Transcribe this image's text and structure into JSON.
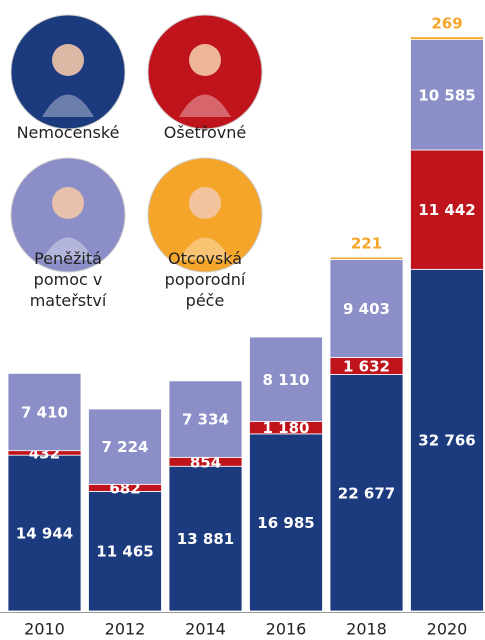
{
  "chart_data": {
    "type": "bar",
    "stacked": true,
    "categories": [
      "2010",
      "2012",
      "2014",
      "2016",
      "2018",
      "2020"
    ],
    "series": [
      {
        "name": "Nemocenské",
        "color": "#1c3a7e",
        "values": [
          14944,
          11465,
          13881,
          16985,
          22677,
          32766
        ],
        "value_labels": [
          "14 944",
          "11 465",
          "13 881",
          "16 985",
          "22 677",
          "32 766"
        ]
      },
      {
        "name": "Ošetřovné",
        "color": "#c0141c",
        "values": [
          432,
          682,
          854,
          1180,
          1632,
          11442
        ],
        "value_labels": [
          "432",
          "682",
          "854",
          "1 180",
          "1 632",
          "11 442"
        ]
      },
      {
        "name": "Peněžitá pomoc v mateřství",
        "color": "#8b8ec7",
        "values": [
          7410,
          7224,
          7334,
          8110,
          9403,
          10585
        ],
        "value_labels": [
          "7 410",
          "7 224",
          "7 334",
          "8 110",
          "9 403",
          "10 585"
        ]
      },
      {
        "name": "Otcovská poporodní péče",
        "color": "#f5a52a",
        "values": [
          null,
          null,
          null,
          null,
          221,
          269
        ]
      }
    ]
  }
}
